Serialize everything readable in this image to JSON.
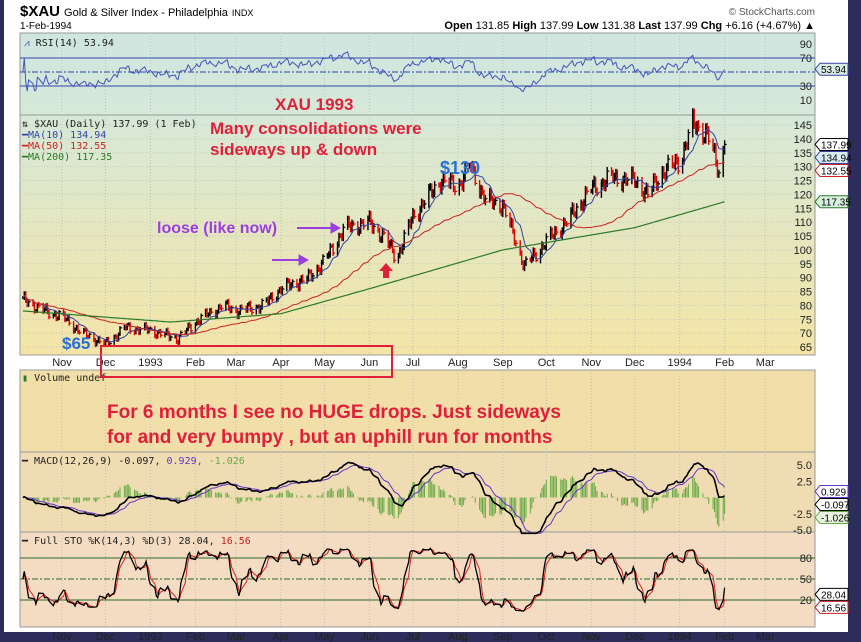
{
  "header": {
    "symbol": "$XAU",
    "name": "Gold & Silver Index - Philadelphia",
    "exchange": "INDX",
    "date": "1-Feb-1994",
    "copyright": "© StockCharts.com",
    "open_label": "Open",
    "open": "131.85",
    "high_label": "High",
    "high": "137.99",
    "low_label": "Low",
    "low": "131.38",
    "last_label": "Last",
    "last": "137.99",
    "chg_label": "Chg",
    "chg": "+6.16 (+4.67%)"
  },
  "colors": {
    "up": "#000000",
    "down": "#dd0000",
    "ma10": "#3344aa",
    "ma50": "#cc2222",
    "ma200": "#2a7a2a",
    "rsi": "#4455bb",
    "annotation_red": "#e0203a",
    "annotation_blue": "#2a6ed8",
    "annotation_purple": "#9a3ee0"
  },
  "rsi": {
    "legend": "RSI(14) 53.94",
    "value_tag": "53.94",
    "ticks": [
      "90",
      "70",
      "30",
      "10"
    ],
    "overbought": 70,
    "oversold": 30
  },
  "price": {
    "legend": "$XAU (Daily) 137.99 (1 Feb)",
    "ma10": "MA(10) 134.94",
    "ma50": "MA(50) 132.55",
    "ma200": "MA(200) 117.35",
    "tags": {
      "last": "137.99",
      "ma10": "134.94",
      "ma50": "132.55",
      "ma200": "117.35"
    },
    "ticks": [
      "145",
      "140",
      "135",
      "130",
      "125",
      "120",
      "115",
      "110",
      "105",
      "100",
      "95",
      "90",
      "85",
      "80",
      "75",
      "70",
      "65"
    ]
  },
  "volume": {
    "legend": "Volume undef"
  },
  "macd": {
    "legend_name": "MACD(12,26,9) -0.097,",
    "signal": "0.929,",
    "hist": "-1.026",
    "ticks": [
      "5.0",
      "2.5",
      "-2.5",
      "-5.0"
    ],
    "tags": {
      "signal": "0.929",
      "macd": "-0.097",
      "hist": "-1.026"
    }
  },
  "sto": {
    "legend_name": "Full STO %K(14,3) %D(3) 28.04,",
    "d": "16.56",
    "ticks": [
      "80",
      "50",
      "20"
    ],
    "tags": {
      "k": "28.04",
      "d": "16.56"
    }
  },
  "x_axis": [
    "Nov",
    "Dec",
    "1993",
    "Feb",
    "Mar",
    "Apr",
    "May",
    "Jun",
    "Jul",
    "Aug",
    "Sep",
    "Oct",
    "Nov",
    "Dec",
    "1994",
    "Feb",
    "Mar"
  ],
  "annotations": {
    "title": "XAU 1993",
    "line1": "Many consolidations were",
    "line2": "sideways up & down",
    "peak": "$130",
    "loose": "loose (like now)",
    "low": "$65",
    "note1": "For 6 months I see no HUGE drops.  Just sideways",
    "note2": "for and very bumpy , but an uphill run for months"
  },
  "chart_data": {
    "type": "ohlc",
    "title": "$XAU Gold & Silver Index - Philadelphia",
    "yrange_price": [
      65,
      145
    ],
    "close_path": [
      [
        "1992-10-05",
        82
      ],
      [
        "1992-10-20",
        78
      ],
      [
        "1992-11-01",
        76
      ],
      [
        "1992-11-15",
        70
      ],
      [
        "1992-12-01",
        66
      ],
      [
        "1992-12-15",
        72
      ],
      [
        "1993-01-01",
        71
      ],
      [
        "1993-01-20",
        68
      ],
      [
        "1993-02-01",
        74
      ],
      [
        "1993-02-20",
        80
      ],
      [
        "1993-03-01",
        78
      ],
      [
        "1993-03-20",
        80
      ],
      [
        "1993-04-01",
        86
      ],
      [
        "1993-04-20",
        90
      ],
      [
        "1993-05-01",
        96
      ],
      [
        "1993-05-15",
        108
      ],
      [
        "1993-06-01",
        110
      ],
      [
        "1993-06-12",
        104
      ],
      [
        "1993-06-20",
        97
      ],
      [
        "1993-07-01",
        112
      ],
      [
        "1993-07-20",
        125
      ],
      [
        "1993-08-01",
        123
      ],
      [
        "1993-08-10",
        130
      ],
      [
        "1993-08-20",
        118
      ],
      [
        "1993-09-01",
        116
      ],
      [
        "1993-09-10",
        103
      ],
      [
        "1993-09-16",
        94
      ],
      [
        "1993-10-01",
        103
      ],
      [
        "1993-10-15",
        110
      ],
      [
        "1993-11-01",
        122
      ],
      [
        "1993-11-15",
        126
      ],
      [
        "1993-12-01",
        125
      ],
      [
        "1993-12-10",
        120
      ],
      [
        "1993-12-20",
        128
      ],
      [
        "1994-01-01",
        132
      ],
      [
        "1994-01-10",
        145
      ],
      [
        "1994-01-20",
        142
      ],
      [
        "1994-01-28",
        128
      ],
      [
        "1994-02-01",
        137.99
      ]
    ],
    "ma200_path": [
      [
        "1992-10-05",
        78
      ],
      [
        "1993-01-15",
        74
      ],
      [
        "1993-04-01",
        77
      ],
      [
        "1993-06-01",
        86
      ],
      [
        "1993-09-01",
        100
      ],
      [
        "1993-12-01",
        108
      ],
      [
        "1994-02-01",
        117.35
      ]
    ]
  }
}
